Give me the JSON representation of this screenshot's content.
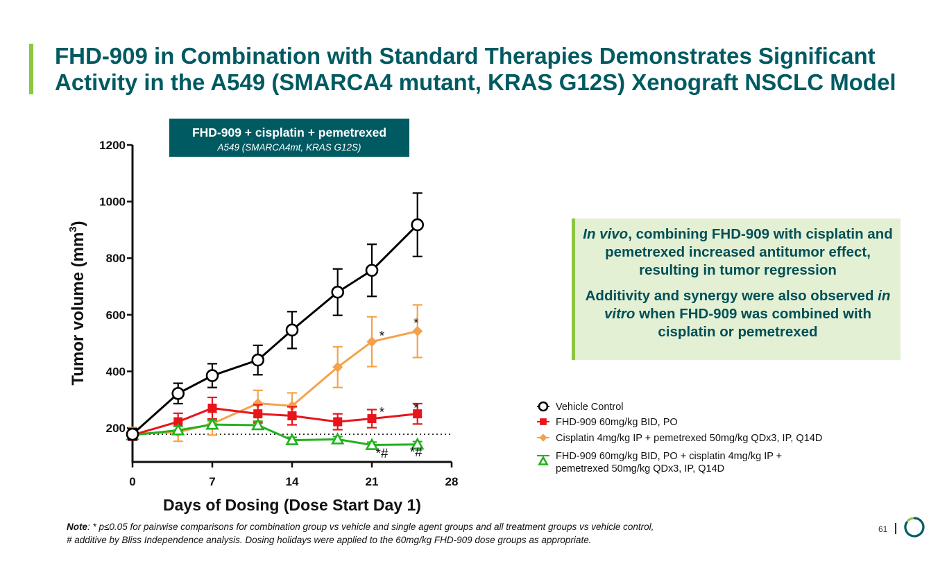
{
  "slide": {
    "title_line1": "FHD-909 in Combination with Standard Therapies Demonstrates Significant",
    "title_line2": "Activity in the A549 (SMARCA4 mutant, KRAS G12S) Xenograft NSCLC Model",
    "page_number": "61"
  },
  "callout": {
    "p1_em": "In vivo",
    "p1_rest": ", combining FHD-909 with cisplatin and pemetrexed increased antitumor effect, resulting in tumor regression",
    "p2_a": "Additivity and synergy were also observed ",
    "p2_em": "in vitro",
    "p2_b": " when FHD-909 was combined with cisplatin or pemetrexed"
  },
  "note": {
    "label": "Note",
    "line1": ": * p≤0.05 for pairwise comparisons for combination group vs vehicle and single agent groups and all treatment groups vs vehicle control,",
    "line2": " # additive by Bliss Independence analysis. Dosing holidays were applied to the 60mg/kg FHD-909 dose groups as appropriate."
  },
  "chart_data": {
    "type": "line",
    "header_title": "FHD-909 + cisplatin + pemetrexed",
    "header_subtitle": "A549 (SMARCA4mt, KRAS G12S)",
    "xlabel": "Days of Dosing (Dose Start Day 1)",
    "ylabel_main": "Tumor volume (mm",
    "ylabel_sup": "3",
    "ylabel_close": ")",
    "xlim": [
      0,
      28
    ],
    "ylim": [
      80,
      1200
    ],
    "xticks": [
      0,
      7,
      14,
      21,
      28
    ],
    "yticks": [
      200,
      400,
      600,
      800,
      1000,
      1200
    ],
    "baseline": 178,
    "colors": {
      "vehicle": "#000000",
      "fhd": "#e8141c",
      "cis": "#f4a24a",
      "combo": "#21b11e",
      "header_bg": "#005a62"
    },
    "series": [
      {
        "key": "vehicle",
        "name": "Vehicle Control",
        "color": "#000000",
        "marker": "circle-open",
        "x": [
          0,
          4,
          7,
          11,
          14,
          18,
          21,
          25
        ],
        "y": [
          178,
          322,
          385,
          440,
          546,
          680,
          757,
          918
        ],
        "err": [
          20,
          36,
          42,
          52,
          65,
          82,
          92,
          112
        ]
      },
      {
        "key": "fhd",
        "name": "FHD-909 60mg/kg BID, PO",
        "color": "#e8141c",
        "marker": "square",
        "x": [
          0,
          4,
          7,
          11,
          14,
          18,
          21,
          25
        ],
        "y": [
          175,
          222,
          270,
          250,
          243,
          222,
          233,
          250
        ],
        "err": [
          18,
          30,
          38,
          32,
          32,
          28,
          32,
          36
        ]
      },
      {
        "key": "cis",
        "name": "Cisplatin 4mg/kg IP + pemetrexed 50mg/kg QDx3, IP, Q14D",
        "color": "#f4a24a",
        "marker": "diamond",
        "x": [
          0,
          4,
          7,
          11,
          14,
          18,
          21,
          25
        ],
        "y": [
          180,
          185,
          215,
          287,
          278,
          415,
          505,
          542
        ],
        "err": [
          22,
          32,
          40,
          46,
          46,
          72,
          88,
          93
        ]
      },
      {
        "key": "combo",
        "name": "FHD-909 60mg/kg BID, PO + cisplatin 4mg/kg IP + pemetrexed 50mg/kg QDx3, IP, Q14D",
        "legend_line1": "FHD-909 60mg/kg BID, PO + cisplatin 4mg/kg IP +",
        "legend_line2": "pemetrexed 50mg/kg QDx3, IP, Q14D",
        "color": "#21b11e",
        "marker": "triangle-open",
        "x": [
          0,
          4,
          7,
          11,
          14,
          18,
          21,
          25
        ],
        "y": [
          175,
          192,
          212,
          210,
          157,
          160,
          140,
          142
        ],
        "err": [
          14,
          14,
          14,
          14,
          10,
          10,
          10,
          10
        ]
      }
    ],
    "annotations": [
      {
        "text": "*",
        "x": 22,
        "y": 510
      },
      {
        "text": "*",
        "x": 25,
        "y": 555
      },
      {
        "text": "*",
        "x": 22,
        "y": 240
      },
      {
        "text": "*",
        "x": 25,
        "y": 255
      },
      {
        "text": "*#",
        "x": 22,
        "y": 95
      },
      {
        "text": "*#",
        "x": 25,
        "y": 100
      }
    ]
  }
}
